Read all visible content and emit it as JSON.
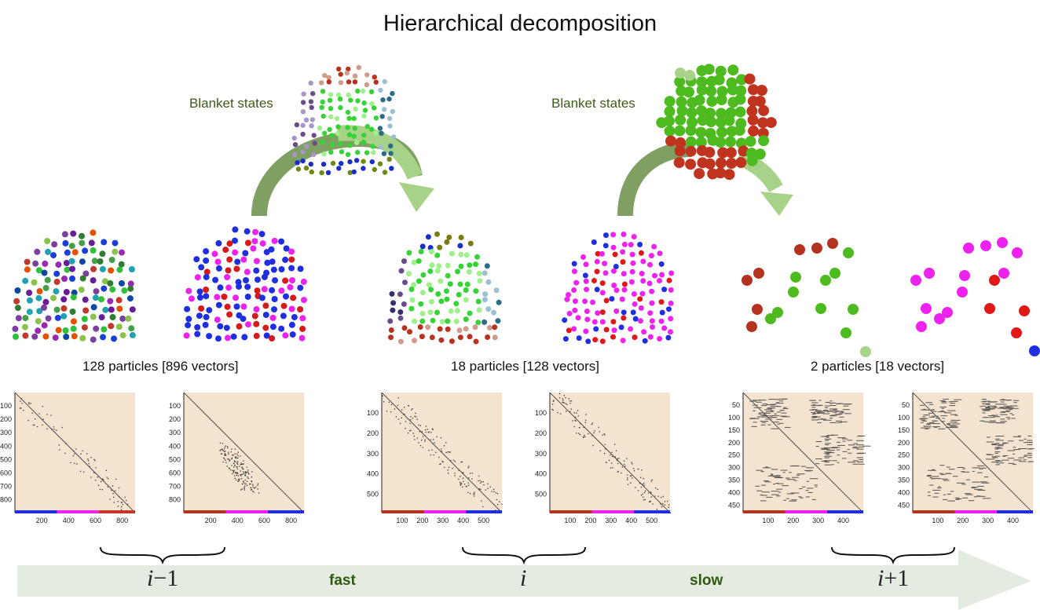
{
  "title": "Hierarchical decomposition",
  "blanket_labels": [
    "Blanket states",
    "Blanket states"
  ],
  "particle_labels": [
    "128 particles [896 vectors]",
    "18 particles [128 vectors]",
    "2 particles [18 vectors]"
  ],
  "scale_labels": {
    "left": {
      "base": "i",
      "op": "−",
      "num": "1"
    },
    "middle": {
      "base": "i"
    },
    "right": {
      "base": "i",
      "op": "+",
      "num": "1"
    }
  },
  "speed_labels": {
    "fast": "fast",
    "slow": "slow"
  },
  "matrices": [
    {
      "yticks": [
        "100",
        "200",
        "300",
        "400",
        "500",
        "600",
        "700",
        "800"
      ],
      "xticks": [
        "200",
        "400",
        "600",
        "800"
      ],
      "max": 896,
      "pattern": "diag-sparse"
    },
    {
      "yticks": [
        "100",
        "200",
        "300",
        "400",
        "500",
        "600",
        "700",
        "800"
      ],
      "xticks": [
        "200",
        "400",
        "600",
        "800"
      ],
      "max": 896,
      "pattern": "diag-cluster"
    },
    {
      "yticks": [
        "100",
        "200",
        "300",
        "400",
        "500"
      ],
      "xticks": [
        "100",
        "200",
        "300",
        "400",
        "500"
      ],
      "max": 590,
      "pattern": "diag-mid"
    },
    {
      "yticks": [
        "100",
        "200",
        "300",
        "400",
        "500"
      ],
      "xticks": [
        "100",
        "200",
        "300",
        "400",
        "500"
      ],
      "max": 590,
      "pattern": "diag-mid2"
    },
    {
      "yticks": [
        "50",
        "100",
        "150",
        "200",
        "250",
        "300",
        "350",
        "400",
        "450"
      ],
      "xticks": [
        "100",
        "200",
        "300",
        "400"
      ],
      "max": 480,
      "pattern": "blocks"
    },
    {
      "yticks": [
        "50",
        "100",
        "150",
        "200",
        "250",
        "300",
        "350",
        "400",
        "450"
      ],
      "xticks": [
        "100",
        "200",
        "300",
        "400"
      ],
      "max": 480,
      "pattern": "blocks"
    }
  ],
  "colors": {
    "matrix_bg": "#f4e3cf",
    "arrow_dark": "#7f9f63",
    "arrow_light": "#a7d287",
    "timeline": "#e4ebe0",
    "blanket_text": "#3d5b17"
  }
}
